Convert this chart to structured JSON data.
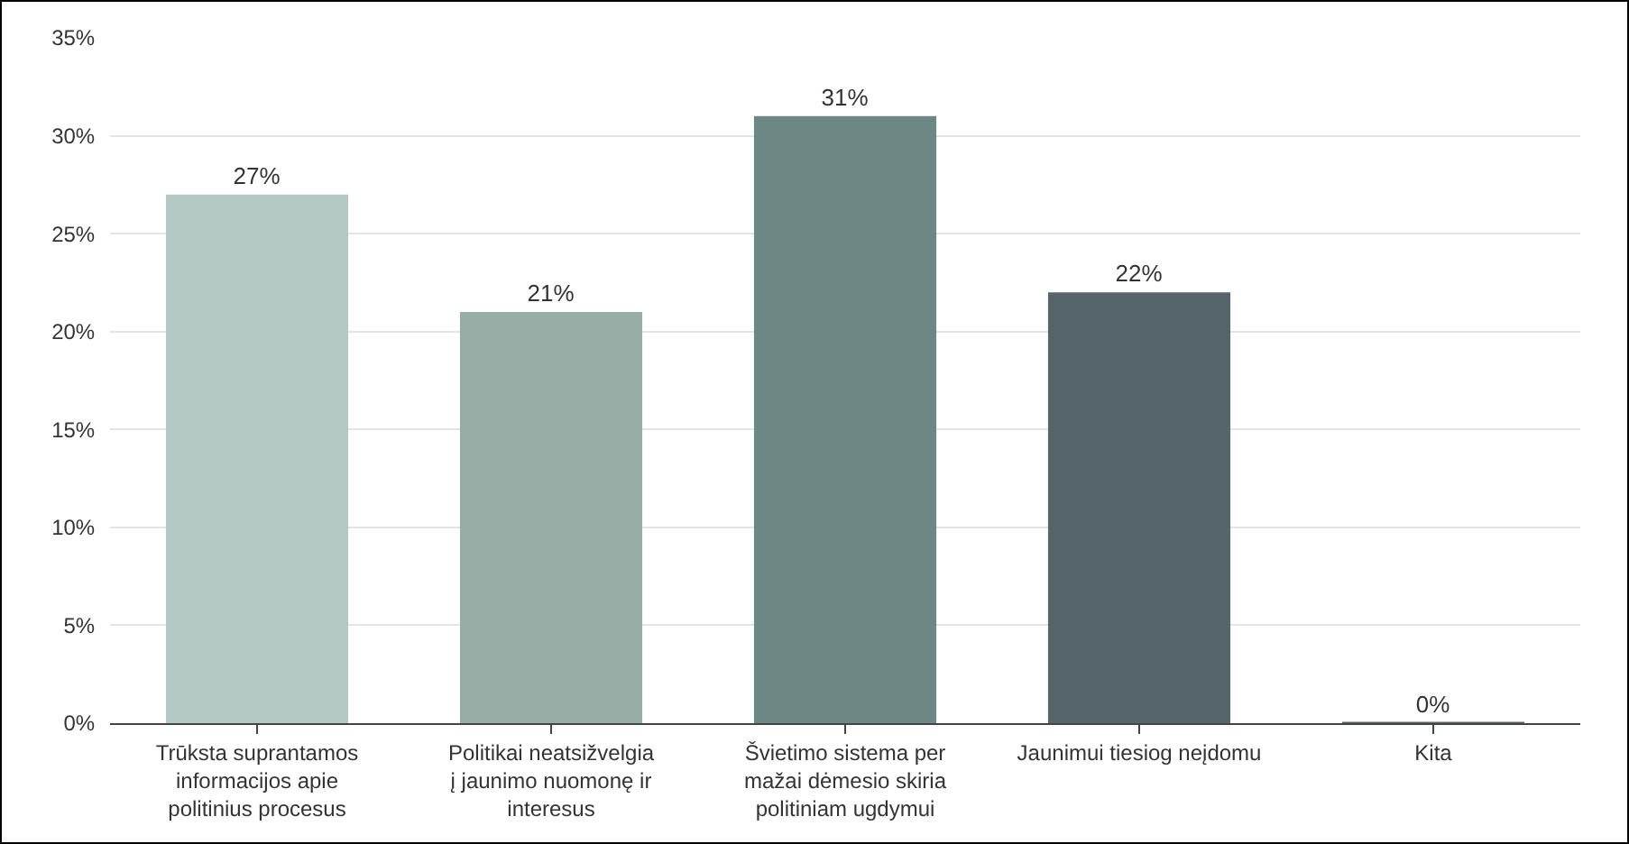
{
  "chart_data": {
    "type": "bar",
    "categories": [
      "Trūksta suprantamos informacijos apie politinius procesus",
      "Politikai neatsižvelgia į jaunimo nuomonę ir interesus",
      "Švietimo sistema per mažai dėmesio skiria politiniam ugdymui",
      "Jaunimui tiesiog neįdomu",
      "Kita"
    ],
    "values": [
      27,
      21,
      31,
      22,
      0
    ],
    "colors": [
      "#b5c9c4",
      "#98aca6",
      "#6b8885",
      "#56656a",
      "#5d6769"
    ],
    "value_labels": [
      "27%",
      "21%",
      "31%",
      "22%",
      "0%"
    ],
    "ylim": [
      0,
      35
    ],
    "yticks": [
      {
        "value": 0,
        "label": "0%"
      },
      {
        "value": 5,
        "label": "5%"
      },
      {
        "value": 10,
        "label": "10%"
      },
      {
        "value": 15,
        "label": "15%"
      },
      {
        "value": 20,
        "label": "20%"
      },
      {
        "value": 25,
        "label": "25%"
      },
      {
        "value": 30,
        "label": "30%"
      },
      {
        "value": 35,
        "label": "35%"
      }
    ],
    "grid": "y"
  }
}
